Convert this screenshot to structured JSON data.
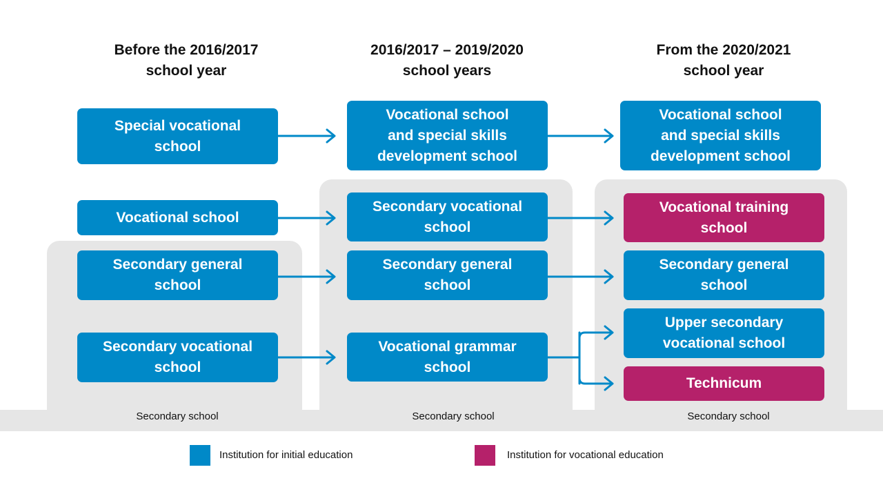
{
  "columns": [
    {
      "id": "before",
      "heading": [
        "Before the 2016/2017",
        "school year"
      ],
      "band_label": "Secondary school"
    },
    {
      "id": "transition",
      "heading": [
        "2016/2017 – 2019/2020",
        "school years"
      ],
      "band_label": "Secondary school"
    },
    {
      "id": "from",
      "heading": [
        "From the 2020/2021",
        "school year"
      ],
      "band_label": "Secondary school"
    }
  ],
  "boxes": {
    "before_special": {
      "lines": [
        "Special vocational",
        "school"
      ],
      "type": "initial"
    },
    "before_vocational": {
      "lines": [
        "Vocational school"
      ],
      "type": "initial"
    },
    "before_secondary_general": {
      "lines": [
        "Secondary general",
        "school"
      ],
      "type": "initial"
    },
    "before_secondary_vocational": {
      "lines": [
        "Secondary vocational",
        "school"
      ],
      "type": "initial"
    },
    "mid_vocational_special": {
      "lines": [
        "Vocational school",
        "and special skills",
        "development school"
      ],
      "type": "initial"
    },
    "mid_secondary_vocational": {
      "lines": [
        "Secondary vocational",
        "school"
      ],
      "type": "initial"
    },
    "mid_secondary_general": {
      "lines": [
        "Secondary general",
        "school"
      ],
      "type": "initial"
    },
    "mid_vocational_grammar": {
      "lines": [
        "Vocational grammar",
        "school"
      ],
      "type": "initial"
    },
    "new_vocational_special": {
      "lines": [
        "Vocational school",
        "and special skills",
        "development school"
      ],
      "type": "initial"
    },
    "new_vocational_training": {
      "lines": [
        "Vocational training",
        "school"
      ],
      "type": "vocational"
    },
    "new_secondary_general": {
      "lines": [
        "Secondary general",
        "school"
      ],
      "type": "initial"
    },
    "new_upper_secondary_vocational": {
      "lines": [
        "Upper secondary",
        "vocational school"
      ],
      "type": "initial"
    },
    "new_technicum": {
      "lines": [
        "Technicum"
      ],
      "type": "vocational"
    }
  },
  "legend": {
    "initial": {
      "label": "Institution for initial education",
      "color": "#0089c8"
    },
    "vocational": {
      "label": "Institution for vocational education",
      "color": "#b5216a"
    }
  },
  "colors": {
    "initial": "#0089c8",
    "vocational": "#b5216a",
    "panel": "#e6e6e6"
  }
}
